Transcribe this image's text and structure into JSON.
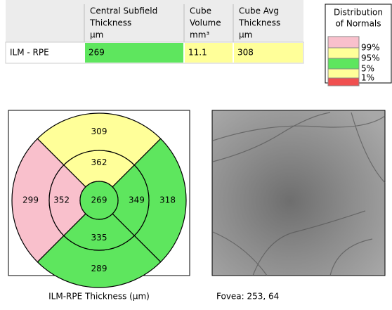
{
  "table": {
    "columns": [
      [
        "Central Subfield",
        "Thickness",
        "µm"
      ],
      [
        "Cube",
        "Volume",
        "mm³"
      ],
      [
        "Cube Avg",
        "Thickness",
        "µm"
      ]
    ],
    "rows": [
      {
        "label": "ILM - RPE",
        "cells": [
          {
            "text": "269",
            "color": "#5ee65e"
          },
          {
            "text": "11.1",
            "color": "#ffff99"
          },
          {
            "text": "308",
            "color": "#ffff99"
          }
        ]
      }
    ]
  },
  "legend": {
    "title": [
      "Distribution",
      "of Normals"
    ],
    "bands": [
      "#f9c0cc",
      "#ffff99",
      "#5ee65e",
      "#ffff99",
      "#f05050"
    ],
    "labels": [
      "99%",
      "95%",
      "5%",
      "1%"
    ]
  },
  "grid": {
    "center": {
      "value": "269",
      "color": "#5ee65e"
    },
    "inner": [
      {
        "value": "362",
        "color": "#ffff99"
      },
      {
        "value": "349",
        "color": "#5ee65e"
      },
      {
        "value": "335",
        "color": "#5ee65e"
      },
      {
        "value": "352",
        "color": "#f9c0cc"
      }
    ],
    "outer": [
      {
        "value": "309",
        "color": "#ffff99"
      },
      {
        "value": "318",
        "color": "#5ee65e"
      },
      {
        "value": "289",
        "color": "#5ee65e"
      },
      {
        "value": "299",
        "color": "#f9c0cc"
      }
    ],
    "caption": "ILM-RPE Thickness (µm)"
  },
  "fundus": {
    "caption": "Fovea: 253, 64"
  }
}
